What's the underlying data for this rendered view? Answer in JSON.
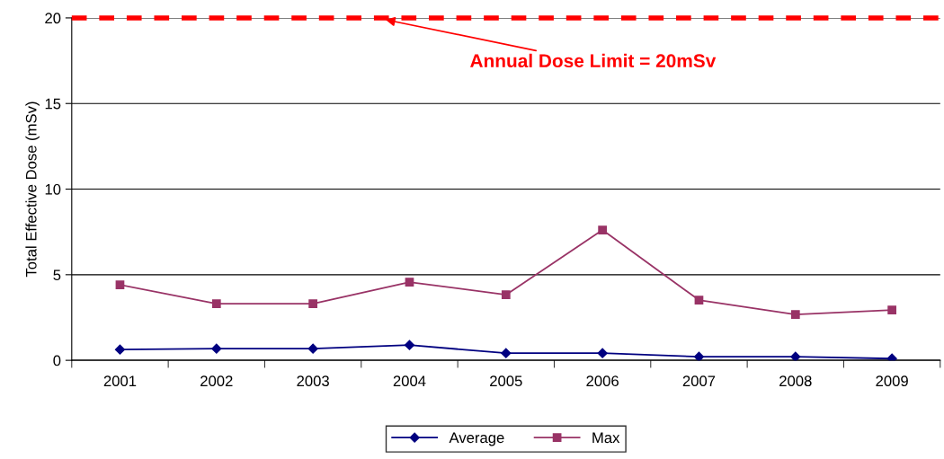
{
  "chart_data": {
    "type": "line",
    "ylabel": "Total Effective Dose (mSv)",
    "categories": [
      "2001",
      "2002",
      "2003",
      "2004",
      "2005",
      "2006",
      "2007",
      "2008",
      "2009"
    ],
    "series": [
      {
        "name": "Average",
        "color": "#000080",
        "marker": "diamond",
        "values": [
          0.63,
          0.68,
          0.68,
          0.89,
          0.42,
          0.42,
          0.21,
          0.21,
          0.1
        ]
      },
      {
        "name": "Max",
        "color": "#993366",
        "marker": "square",
        "values": [
          4.41,
          3.31,
          3.31,
          4.57,
          3.83,
          7.61,
          3.52,
          2.68,
          2.94
        ]
      }
    ],
    "ylim": [
      0,
      20
    ],
    "yticks": [
      0,
      5,
      10,
      15,
      20
    ],
    "grid": "y",
    "legend": "bottom",
    "ref_lines": [
      {
        "axis": "y",
        "value": 20,
        "label": "Annual Dose Limit = 20mSv",
        "color": "#ff0000",
        "line_style": "dashed"
      }
    ]
  }
}
